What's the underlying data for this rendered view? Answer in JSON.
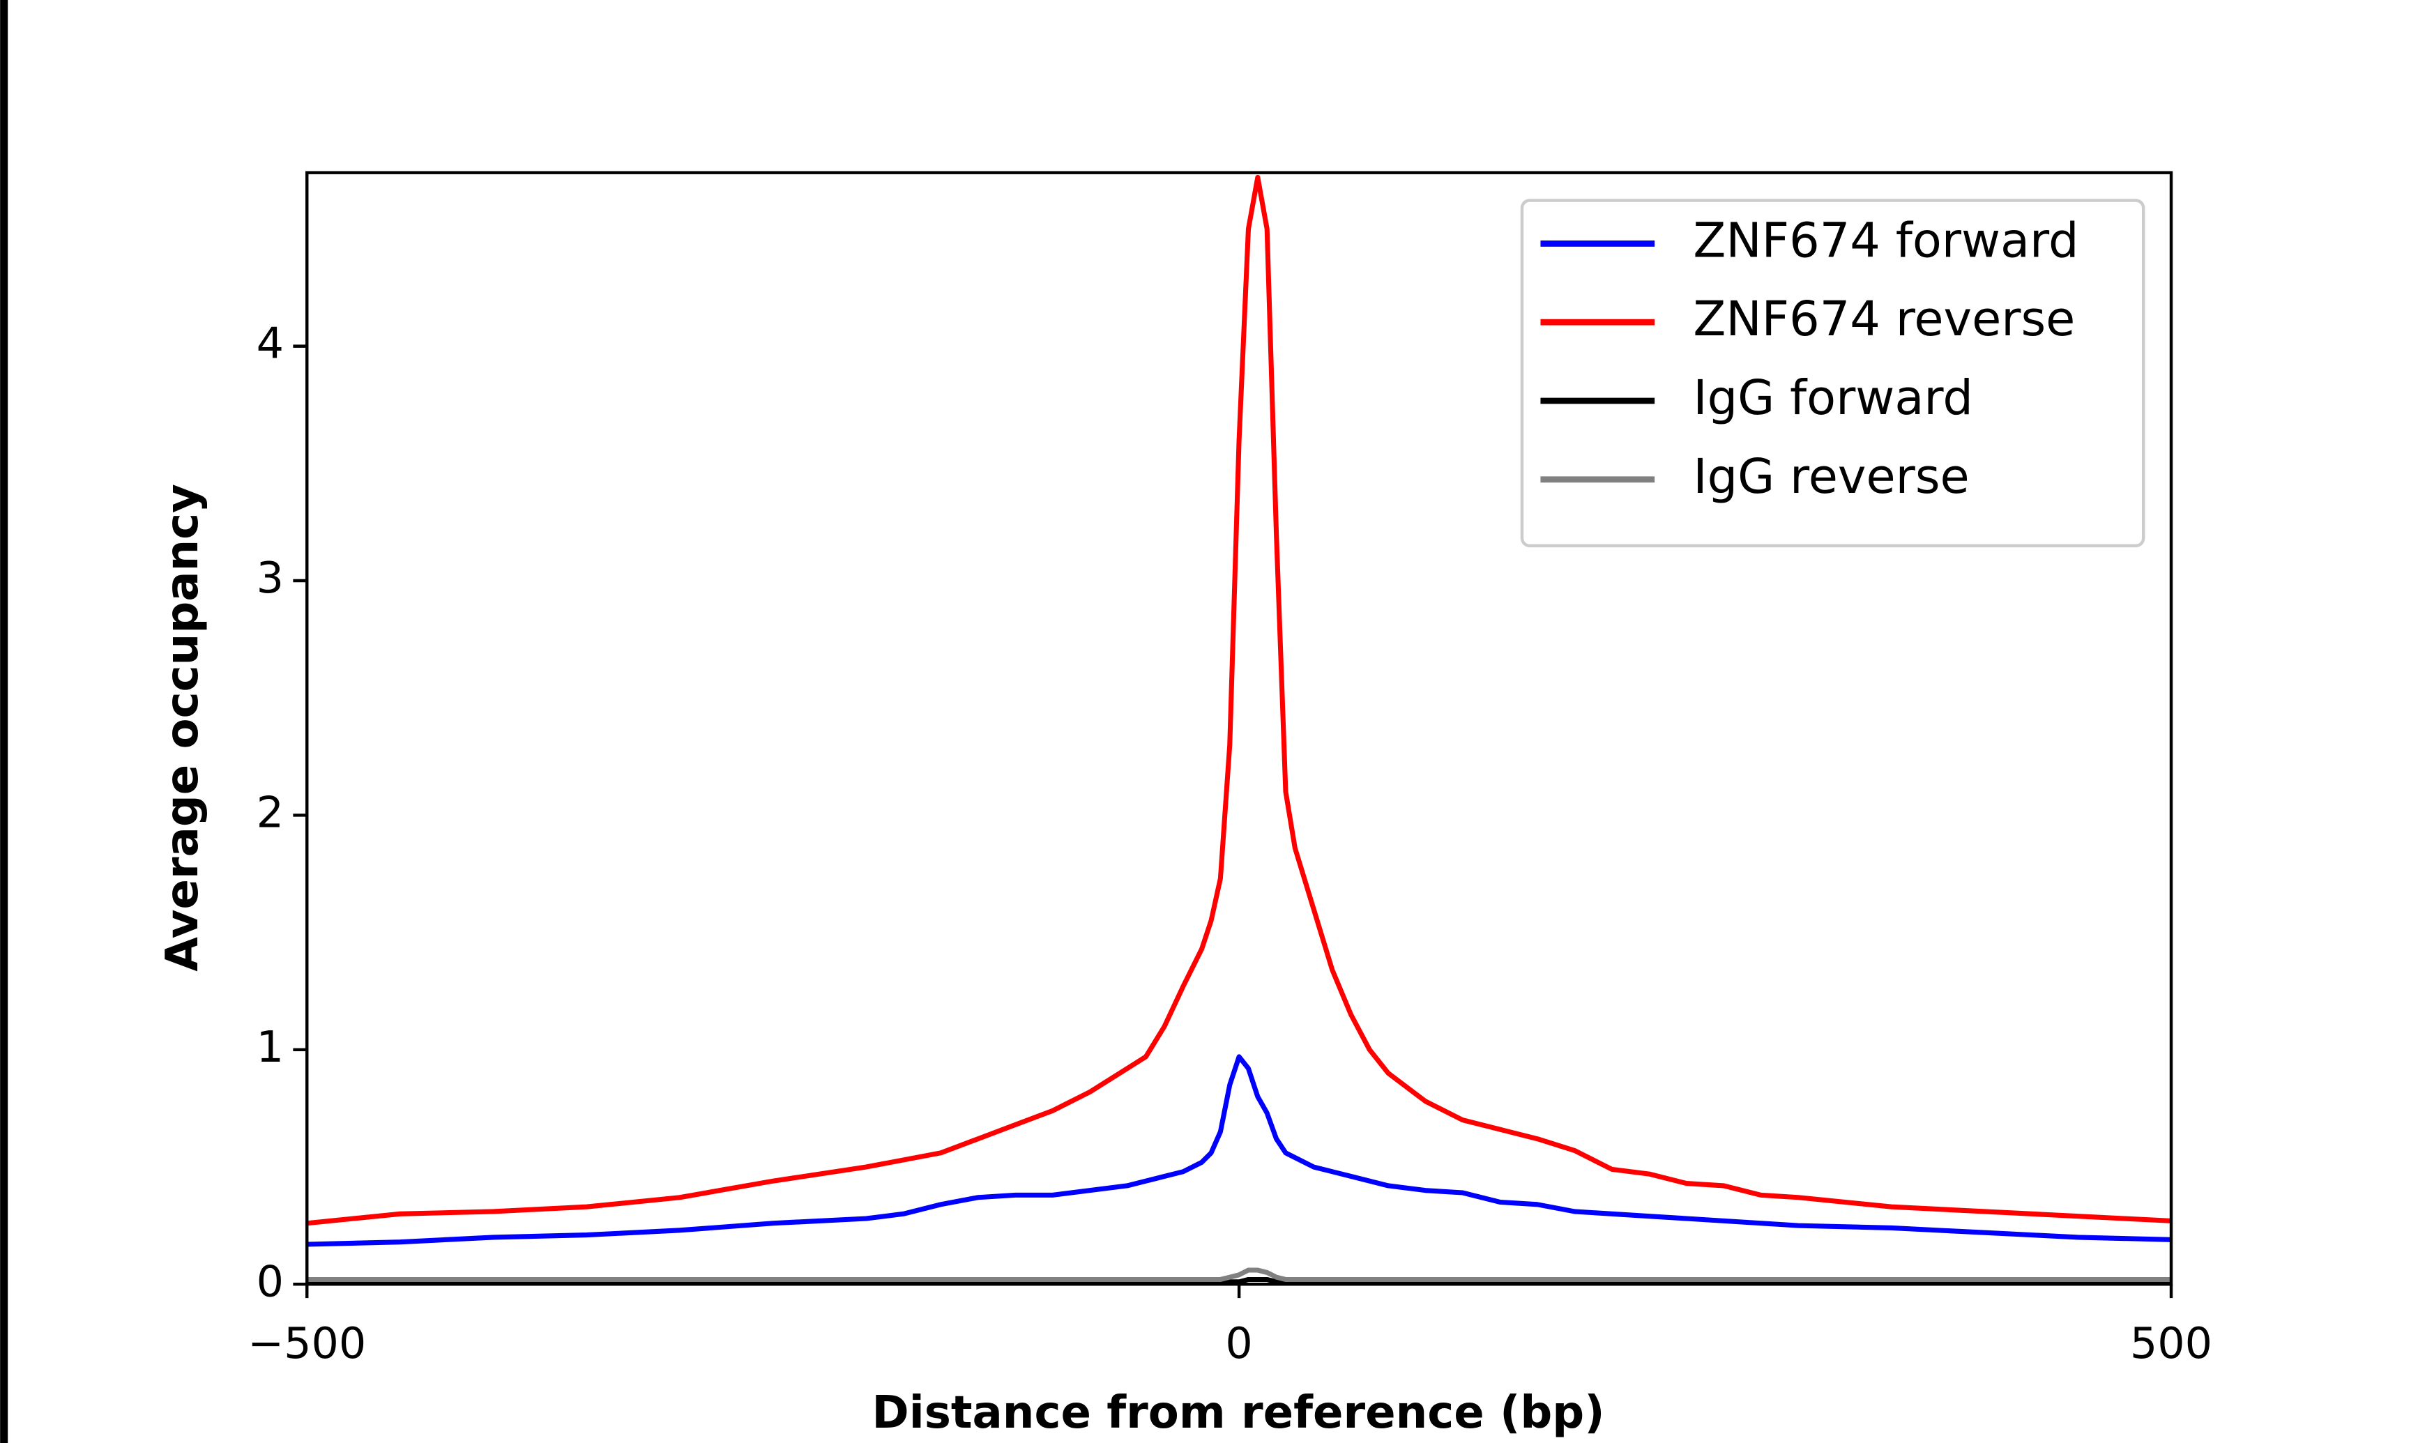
{
  "chart_data": {
    "type": "line",
    "x_label": "Distance from reference (bp)",
    "y_label": "Average occupancy",
    "x": [
      -500,
      -450,
      -400,
      -350,
      -300,
      -250,
      -200,
      -180,
      -160,
      -140,
      -120,
      -100,
      -80,
      -60,
      -50,
      -40,
      -30,
      -20,
      -15,
      -10,
      -5,
      0,
      5,
      10,
      15,
      20,
      25,
      30,
      40,
      50,
      60,
      70,
      80,
      100,
      120,
      140,
      160,
      180,
      200,
      220,
      240,
      260,
      280,
      300,
      350,
      400,
      450,
      500
    ],
    "series": [
      {
        "name": "ZNF674 forward",
        "color": "#0000ff",
        "values": [
          0.17,
          0.18,
          0.2,
          0.21,
          0.23,
          0.26,
          0.28,
          0.3,
          0.34,
          0.37,
          0.38,
          0.38,
          0.4,
          0.42,
          0.44,
          0.46,
          0.48,
          0.52,
          0.56,
          0.65,
          0.85,
          0.97,
          0.92,
          0.8,
          0.73,
          0.62,
          0.56,
          0.54,
          0.5,
          0.48,
          0.46,
          0.44,
          0.42,
          0.4,
          0.39,
          0.35,
          0.34,
          0.31,
          0.3,
          0.29,
          0.28,
          0.27,
          0.26,
          0.25,
          0.24,
          0.22,
          0.2,
          0.19
        ]
      },
      {
        "name": "ZNF674 reverse",
        "color": "#ff0000",
        "values": [
          0.26,
          0.3,
          0.31,
          0.33,
          0.37,
          0.44,
          0.5,
          0.53,
          0.56,
          0.62,
          0.68,
          0.74,
          0.82,
          0.92,
          0.97,
          1.1,
          1.27,
          1.43,
          1.55,
          1.73,
          2.3,
          3.6,
          4.5,
          4.72,
          4.5,
          3.2,
          2.1,
          1.86,
          1.6,
          1.34,
          1.15,
          1.0,
          0.9,
          0.78,
          0.7,
          0.66,
          0.62,
          0.57,
          0.49,
          0.47,
          0.43,
          0.42,
          0.38,
          0.37,
          0.33,
          0.31,
          0.29,
          0.27
        ]
      },
      {
        "name": "IgG forward",
        "color": "#000000",
        "values": [
          0.01,
          0.01,
          0.01,
          0.01,
          0.01,
          0.01,
          0.01,
          0.01,
          0.01,
          0.01,
          0.01,
          0.01,
          0.01,
          0.01,
          0.01,
          0.01,
          0.01,
          0.01,
          0.01,
          0.01,
          0.01,
          0.01,
          0.02,
          0.02,
          0.02,
          0.01,
          0.01,
          0.01,
          0.01,
          0.01,
          0.01,
          0.01,
          0.01,
          0.01,
          0.01,
          0.01,
          0.01,
          0.01,
          0.01,
          0.01,
          0.01,
          0.01,
          0.01,
          0.01,
          0.01,
          0.01,
          0.01,
          0.01
        ]
      },
      {
        "name": "IgG reverse",
        "color": "#808080",
        "values": [
          0.02,
          0.02,
          0.02,
          0.02,
          0.02,
          0.02,
          0.02,
          0.02,
          0.02,
          0.02,
          0.02,
          0.02,
          0.02,
          0.02,
          0.02,
          0.02,
          0.02,
          0.02,
          0.02,
          0.02,
          0.03,
          0.04,
          0.06,
          0.06,
          0.05,
          0.03,
          0.02,
          0.02,
          0.02,
          0.02,
          0.02,
          0.02,
          0.02,
          0.02,
          0.02,
          0.02,
          0.02,
          0.02,
          0.02,
          0.02,
          0.02,
          0.02,
          0.02,
          0.02,
          0.02,
          0.02,
          0.02,
          0.02
        ]
      }
    ],
    "xlim": [
      -500,
      500
    ],
    "ylim": [
      0,
      4.74
    ],
    "xticks": [
      {
        "value": -500,
        "label": "−500"
      },
      0,
      500
    ],
    "yticks": [
      0,
      1,
      2,
      3,
      4
    ],
    "legend": "upper right"
  }
}
